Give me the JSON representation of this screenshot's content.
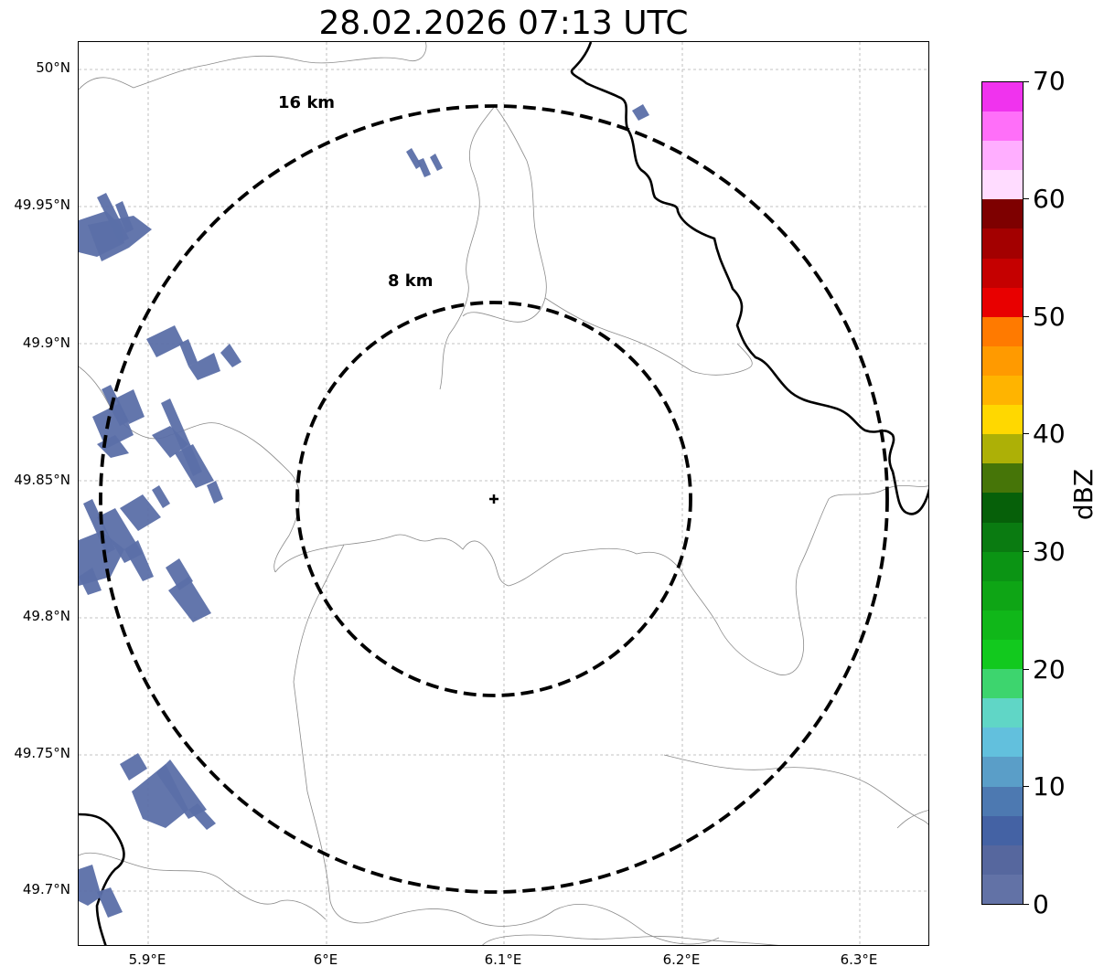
{
  "title": "28.02.2026 07:13 UTC",
  "lat_labels": [
    "50°N",
    "49.95°N",
    "49.9°N",
    "49.85°N",
    "49.8°N",
    "49.75°N",
    "49.7°N"
  ],
  "lon_labels": [
    "5.9°E",
    "6°E",
    "6.1°E",
    "6.2°E",
    "6.3°E"
  ],
  "rings": {
    "inner_label": "8 km",
    "outer_label": "16 km"
  },
  "radar_site": {
    "lat": 49.843,
    "lon": 6.095
  },
  "colorbar": {
    "label": "dBZ",
    "ticks": [
      "0",
      "10",
      "20",
      "30",
      "40",
      "50",
      "60",
      "70"
    ],
    "colors": [
      "#6272a6",
      "#56679e",
      "#4462a4",
      "#4d79b1",
      "#5a9ec8",
      "#62c0dd",
      "#60d6c6",
      "#3dd56e",
      "#12c91e",
      "#10b719",
      "#0ea515",
      "#0b9414",
      "#0a7b11",
      "#066009",
      "#467508",
      "#adb006",
      "#ffd800",
      "#ffb400",
      "#ff9a00",
      "#ff7a00",
      "#e80000",
      "#c50000",
      "#a30000",
      "#7e0000",
      "#ffdcff",
      "#ffaeff",
      "#ff6ff9",
      "#f033ee"
    ]
  },
  "colors": {
    "echo": "#5b6fa8",
    "ring": "#000000",
    "grid": "#b0b0b0"
  }
}
